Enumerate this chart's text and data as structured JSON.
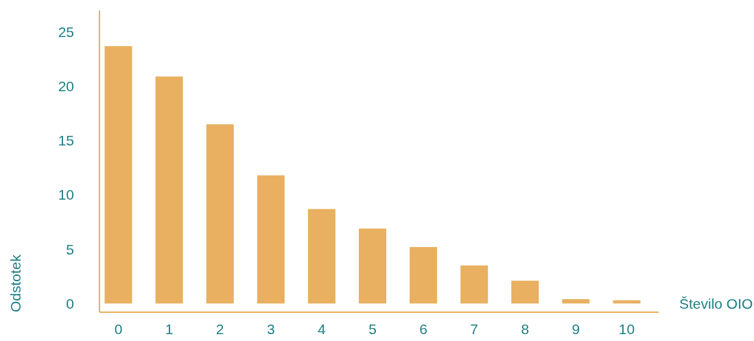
{
  "chart_data": {
    "type": "bar",
    "xlabel": "Število OIO",
    "ylabel": "Odstotek",
    "categories": [
      "0",
      "1",
      "2",
      "3",
      "4",
      "5",
      "6",
      "7",
      "8",
      "9",
      "10"
    ],
    "values": [
      23.7,
      20.9,
      16.5,
      11.8,
      8.7,
      6.9,
      5.2,
      3.5,
      2.1,
      0.4,
      0.3
    ],
    "color": "#e8b060",
    "ylim": [
      -0.8,
      27
    ],
    "yticks": [
      0,
      5,
      10,
      15,
      20,
      25
    ],
    "grid": false
  }
}
